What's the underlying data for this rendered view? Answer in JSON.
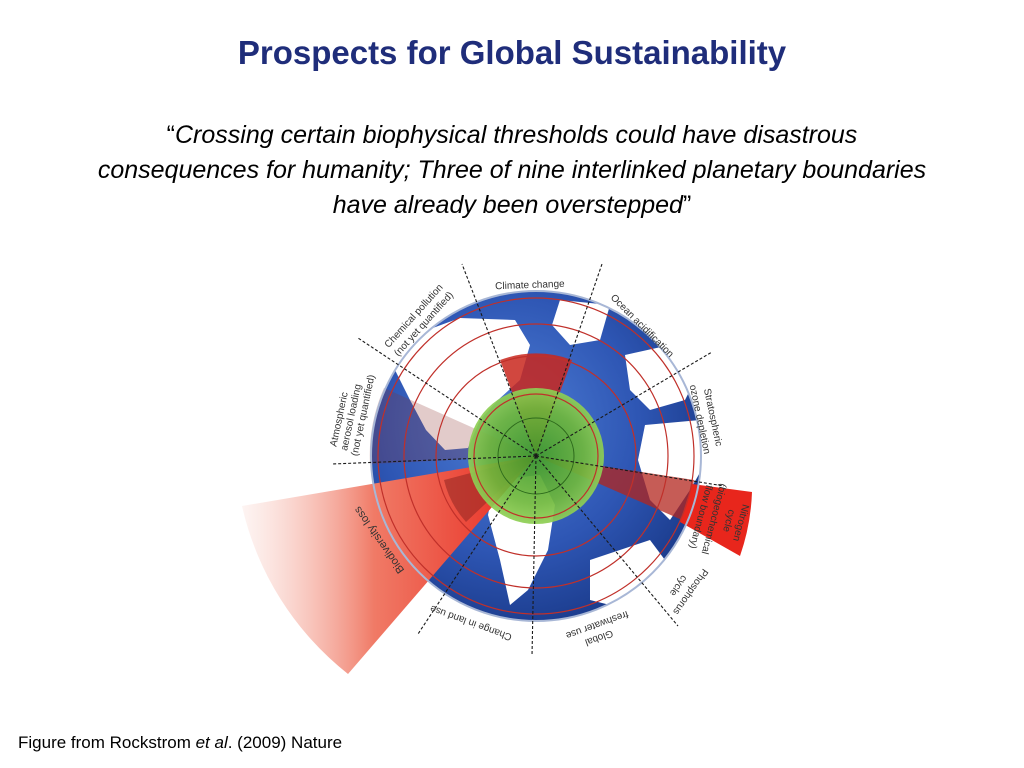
{
  "slide": {
    "title": "Prospects for Global Sustainability",
    "quote": {
      "open_mark": "“",
      "text": "Crossing certain biophysical thresholds could have disastrous consequences for humanity; Three of nine interlinked planetary boundaries have already been overstepped",
      "close_mark": "”"
    },
    "caption": {
      "prefix": "Figure from Rockstrom ",
      "italic": "et al",
      "suffix": ". (2009) Nature"
    }
  },
  "diagram": {
    "labels": {
      "climate": "Climate change",
      "ocean": "Ocean acidification",
      "ozone_1": "Stratospheric",
      "ozone_2": "ozone depletion",
      "nitrogen_1": "Nitrogen",
      "nitrogen_2": "cycle",
      "nitrogen_3": "(biogeochemical",
      "nitrogen_4": "flow boundary)",
      "phosphorus_1": "Phosphorus",
      "phosphorus_2": "cycle",
      "freshwater_1": "Global",
      "freshwater_2": "freshwater use",
      "landuse": "Change in land use",
      "biodiversity": "Biodiversity loss",
      "aerosol_1": "Atmospheric",
      "aerosol_2": "aerosol loading",
      "aerosol_3": "(not yet quantified)",
      "chemical_1": "Chemical pollution",
      "chemical_2": "(not yet quantified)"
    },
    "colors": {
      "ocean": "#2e56b4",
      "land": "#ffffff",
      "safe_zone": "#7cc045",
      "overshoot": "#e8261c",
      "text": "#333333"
    }
  }
}
